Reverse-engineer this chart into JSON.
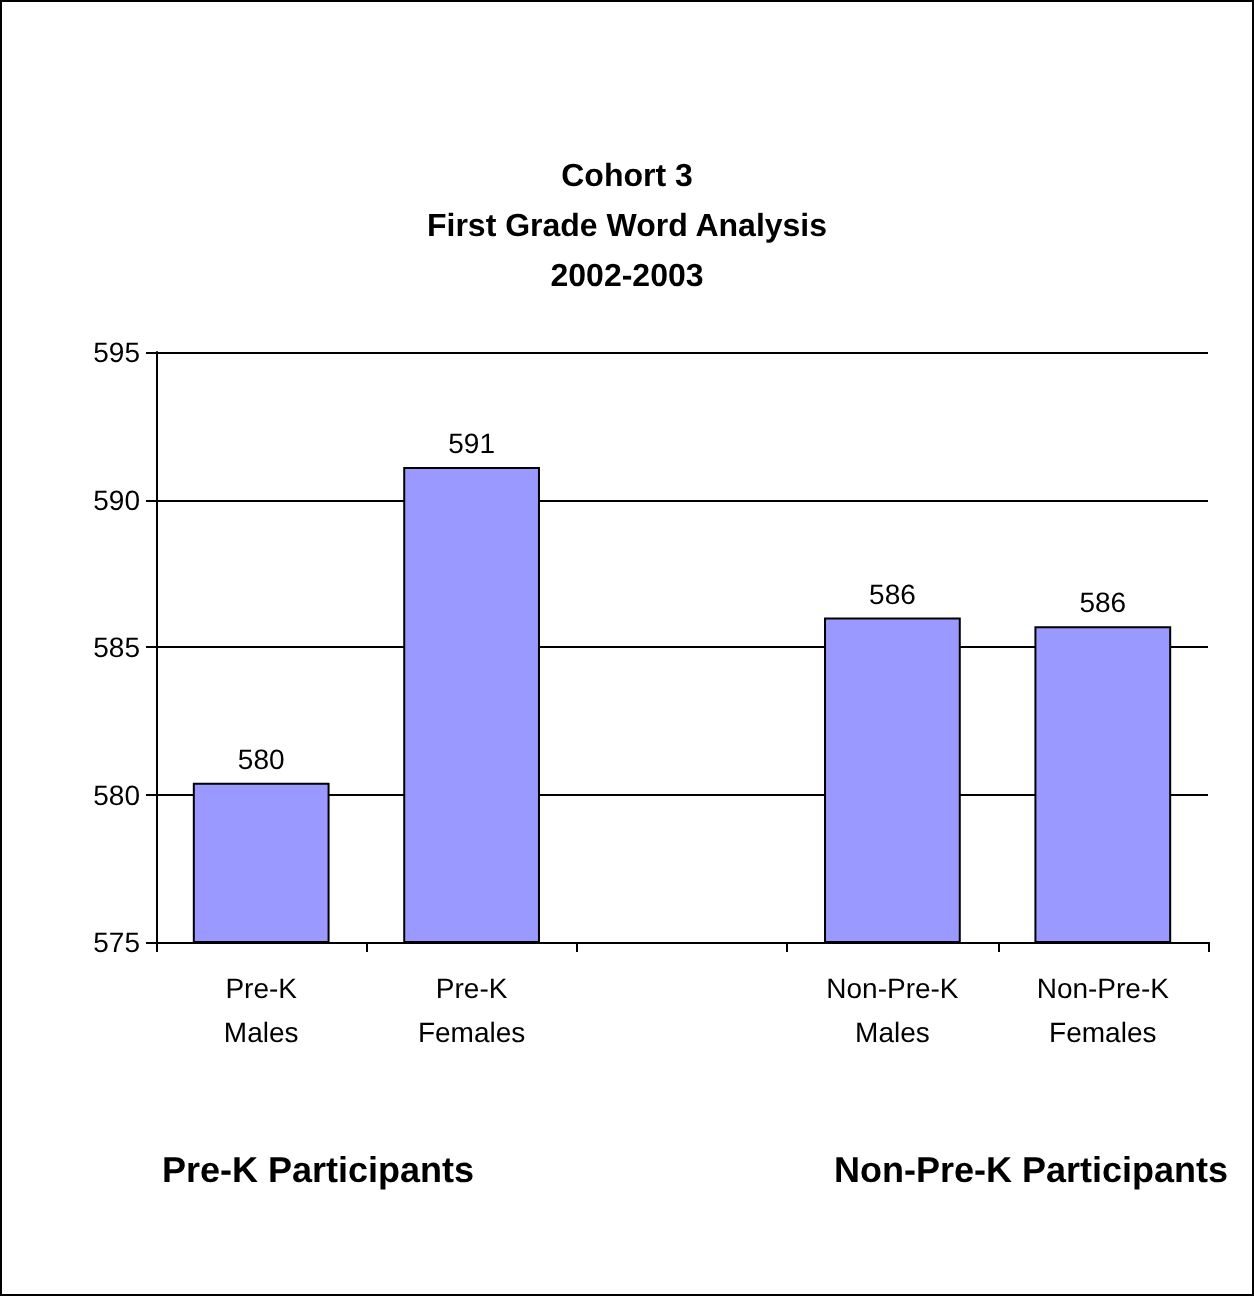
{
  "chart_data": {
    "type": "bar",
    "title": "Cohort 3\nFirst Grade Word Analysis\n2002-2003",
    "categories": [
      "Pre-K\nMales",
      "Pre-K\nFemales",
      null,
      "Non-Pre-K\nMales",
      "Non-Pre-K\nFemales"
    ],
    "values": [
      580.4,
      591.1,
      null,
      586.0,
      585.7
    ],
    "value_labels": [
      "580",
      "591",
      null,
      "586",
      "586"
    ],
    "color": "#9999ff",
    "ylim": [
      575,
      595
    ],
    "yticks": [
      575,
      580,
      585,
      590,
      595
    ],
    "grid": "y",
    "annotations": [
      "Pre-K Participants",
      "Non-Pre-K Participants"
    ]
  }
}
